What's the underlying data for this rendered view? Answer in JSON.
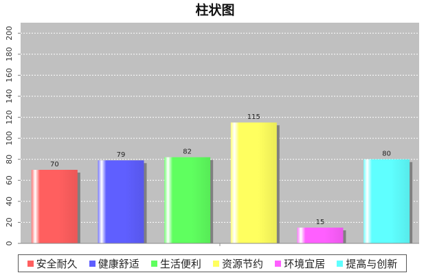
{
  "chart_data": {
    "type": "bar",
    "title": "柱状图",
    "categories": [
      "安全耐久",
      "健康舒适",
      "生活便利",
      "资源节约",
      "环境宜居",
      "提高与创新"
    ],
    "values": [
      70,
      79,
      82,
      115,
      15,
      80
    ],
    "data_labels": [
      "70",
      "79",
      "82",
      "115",
      "15",
      "80"
    ],
    "colors": [
      "#ff5f5f",
      "#5f5fff",
      "#5fff5f",
      "#ffff5f",
      "#ff5fff",
      "#5fffff"
    ],
    "ylim": [
      0,
      210
    ],
    "yticks": [
      0,
      20,
      40,
      60,
      80,
      100,
      120,
      140,
      160,
      180,
      200
    ],
    "ytick_labels": [
      "0",
      "20",
      "40",
      "60",
      "80",
      "100",
      "120",
      "140",
      "160",
      "180",
      "200"
    ],
    "grid": true,
    "legend_position": "bottom",
    "plot_background": "#c0c0c0"
  }
}
